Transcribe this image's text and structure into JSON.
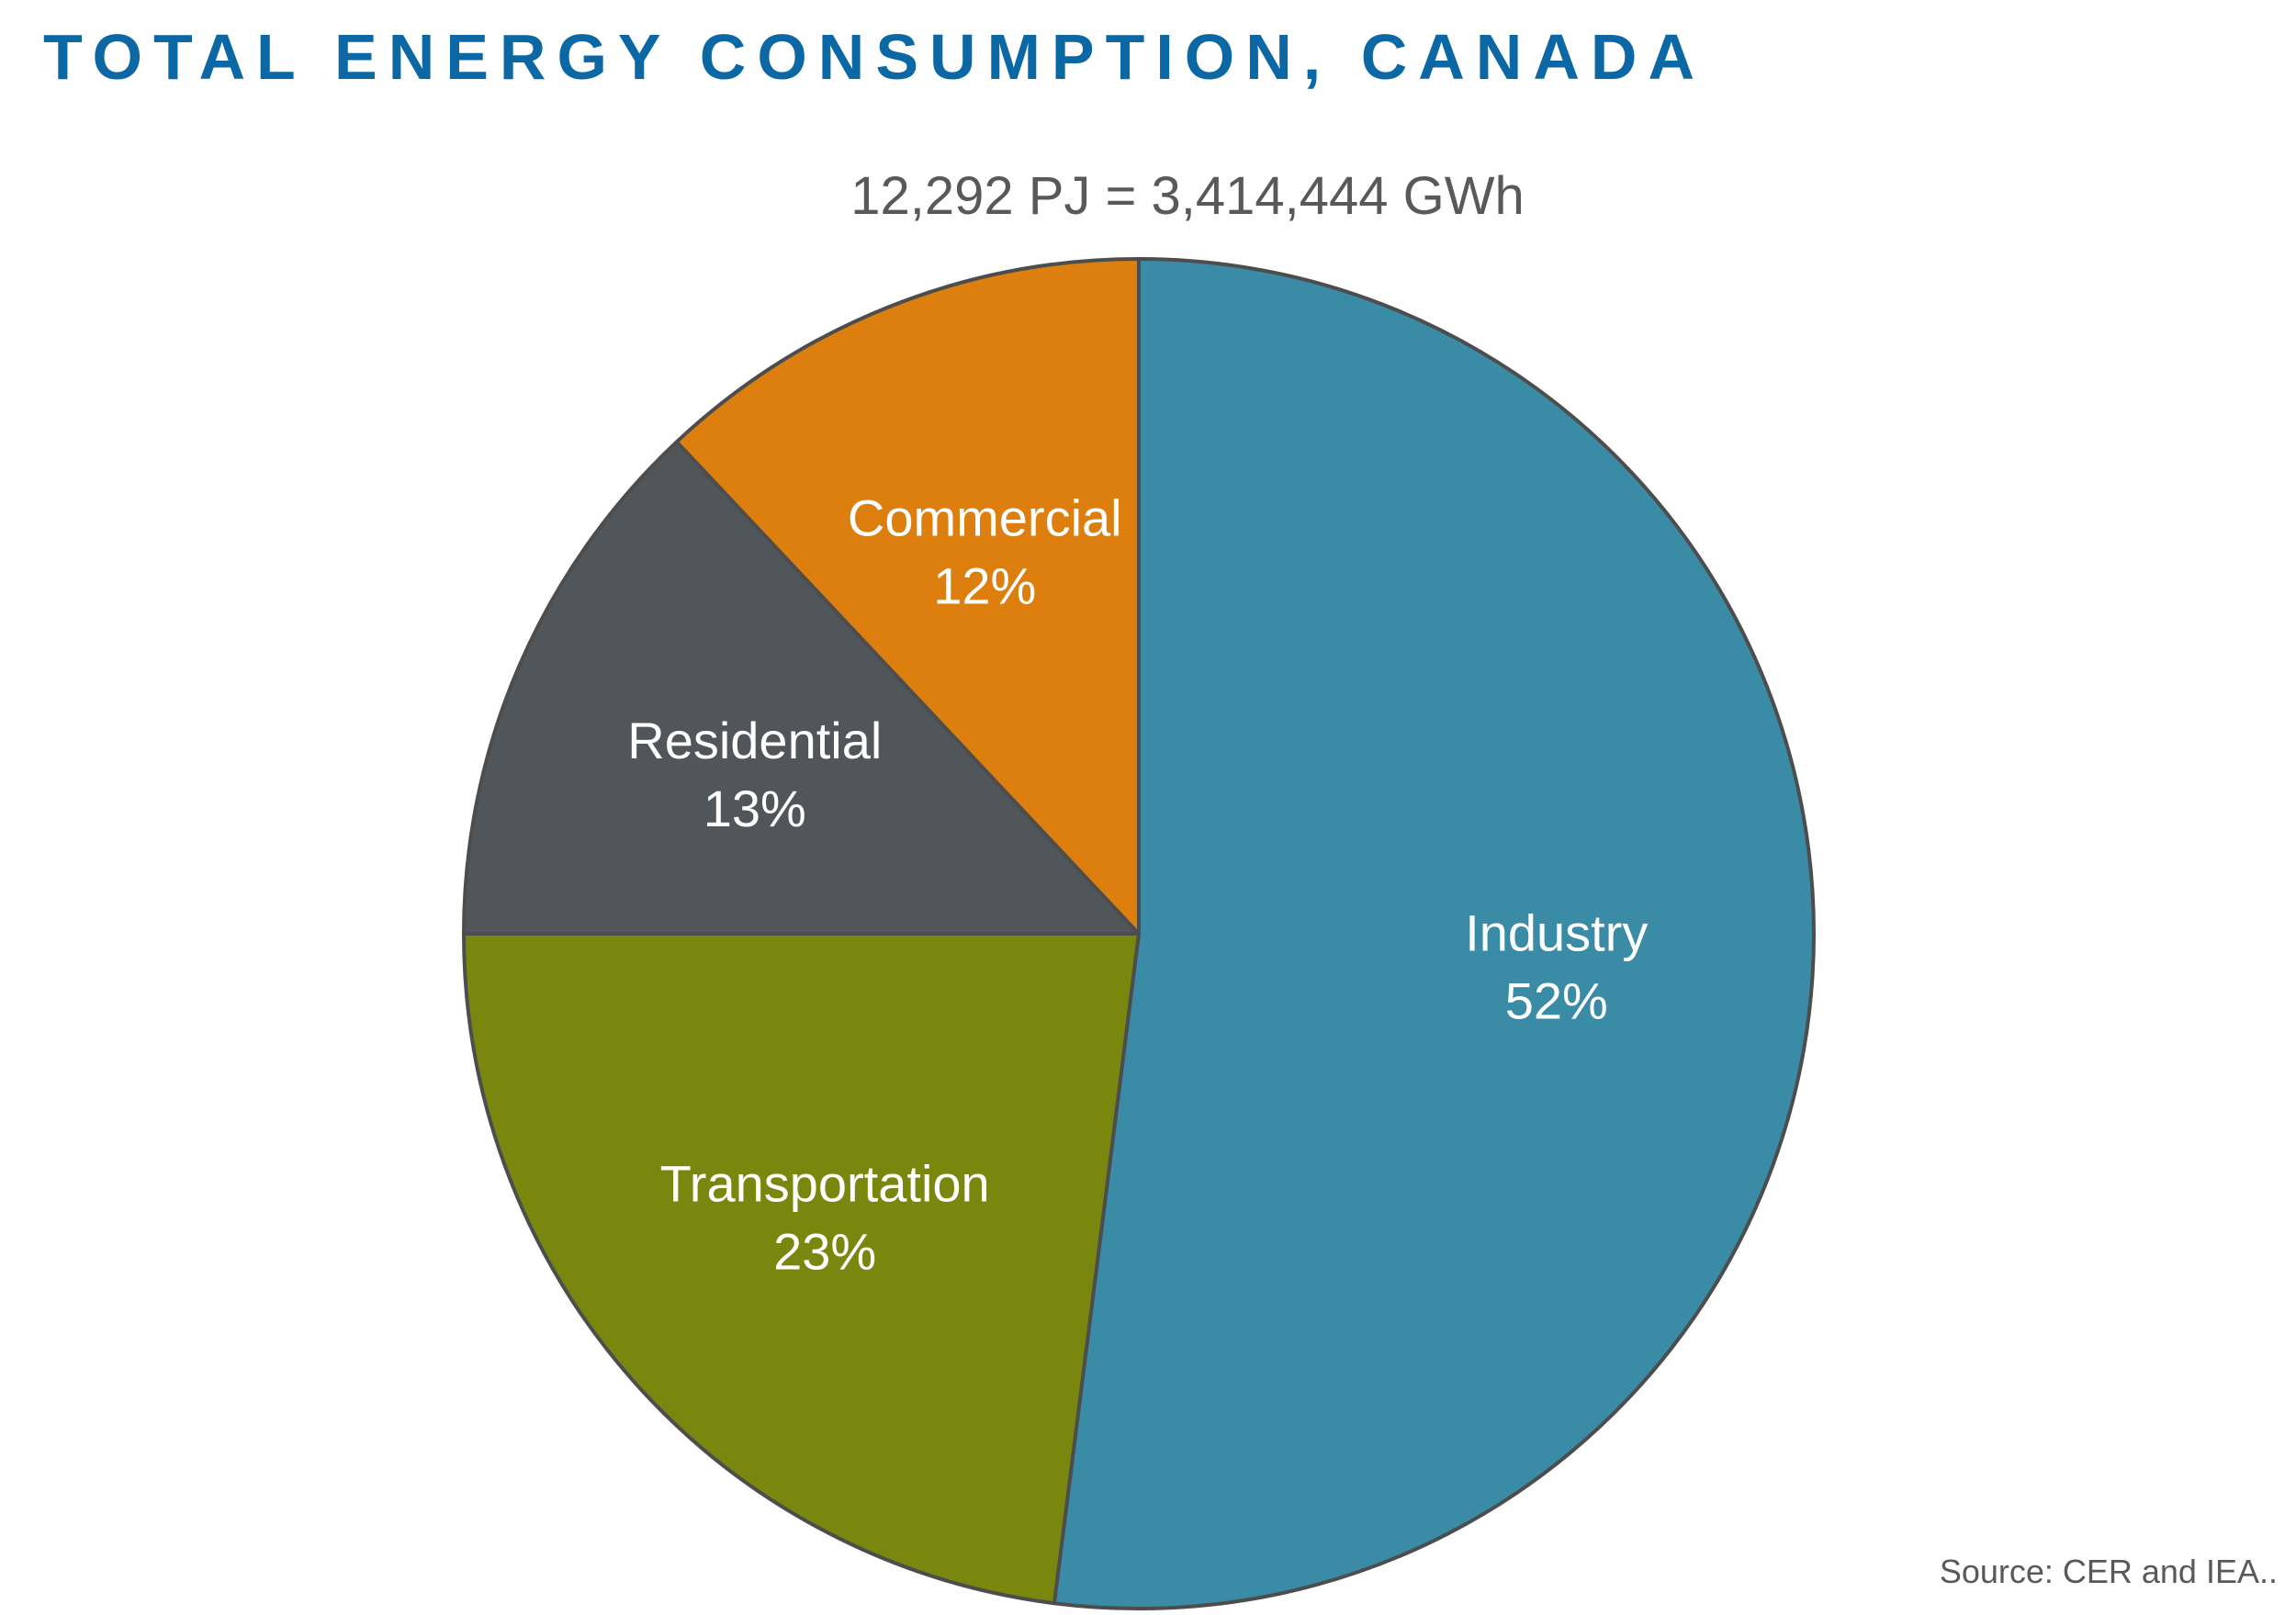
{
  "page": {
    "title": "TOTAL ENERGY CONSUMPTION, CANADA",
    "source": "Source: CER and IEA.."
  },
  "chart_data": {
    "type": "pie",
    "subtitle": "12,292 PJ = 3,414,444 GWh",
    "start": "12 o'clock",
    "direction": "clockwise",
    "slices": [
      {
        "label": "Industry",
        "value": 52,
        "value_label": "52%",
        "color": "#398ba6"
      },
      {
        "label": "Transportation",
        "value": 23,
        "value_label": "23%",
        "color": "#79870f"
      },
      {
        "label": "Residential",
        "value": 13,
        "value_label": "13%",
        "color": "#51565a"
      },
      {
        "label": "Commercial",
        "value": 12,
        "value_label": "12%",
        "color": "#dd7f0e"
      }
    ],
    "slice_border_color": "#4d4d4d",
    "label_color": "#ffffff"
  }
}
